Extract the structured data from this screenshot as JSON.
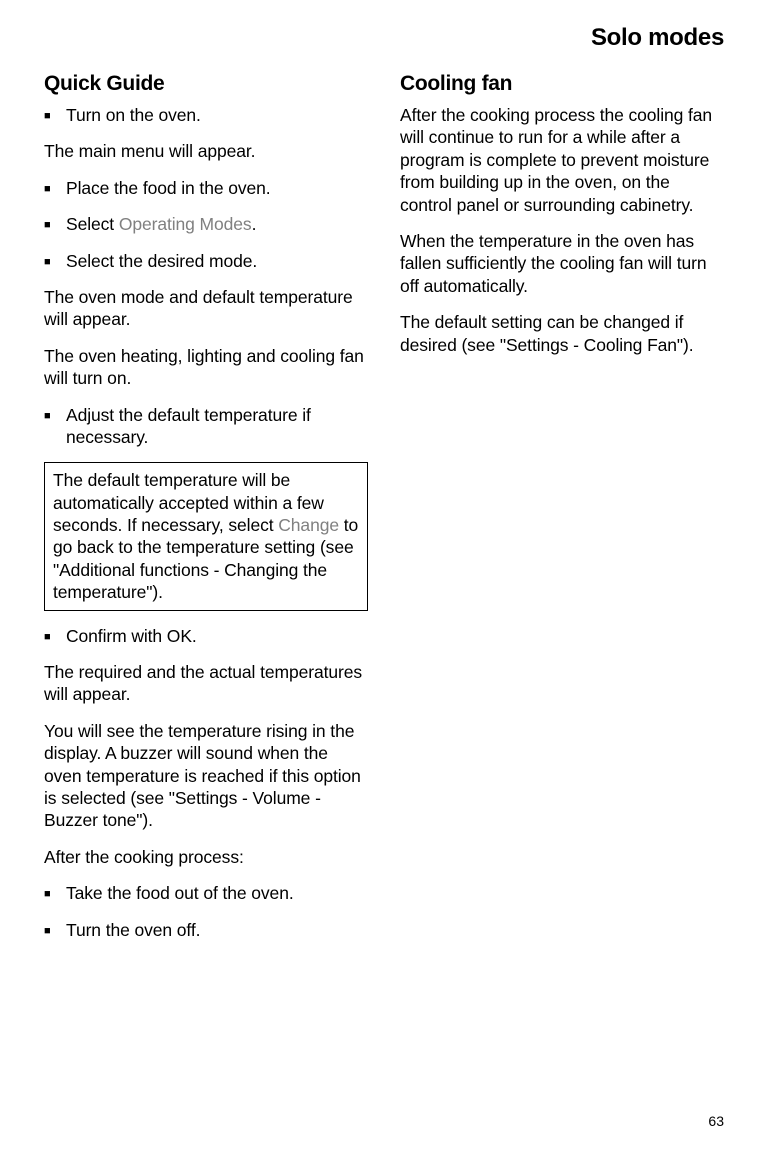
{
  "header": {
    "title": "Solo modes"
  },
  "left": {
    "heading": "Quick Guide",
    "items": [
      {
        "type": "bullet",
        "text": "Turn on the oven."
      },
      {
        "type": "para",
        "text": "The main menu will appear."
      },
      {
        "type": "bullet",
        "text": "Place the food in the oven."
      },
      {
        "type": "bullet_select",
        "prefix": "Select ",
        "label": "Operating Modes",
        "suffix": "."
      },
      {
        "type": "bullet",
        "text": "Select the desired mode."
      },
      {
        "type": "para",
        "text": "The oven mode and default temperature will appear."
      },
      {
        "type": "para",
        "text": "The oven heating, lighting and cooling fan will turn on."
      },
      {
        "type": "bullet",
        "text": "Adjust the default temperature if necessary."
      },
      {
        "type": "note",
        "prefix": "The default temperature will be automatically accepted within a few seconds. If necessary, select ",
        "label": "Change",
        "suffix": " to go back to the temperature setting (see \"Additional functions - Changing the temperature\")."
      },
      {
        "type": "bullet",
        "text": "Confirm with OK."
      },
      {
        "type": "para",
        "text": "The required and the actual temperatures will appear."
      },
      {
        "type": "para",
        "text": "You will see the temperature rising in the display. A buzzer will sound when the oven temperature is reached if this option is selected (see \"Settings - Volume - Buzzer tone\")."
      },
      {
        "type": "para",
        "text": "After the cooking process:"
      },
      {
        "type": "bullet",
        "text": "Take the food out of the oven."
      },
      {
        "type": "bullet",
        "text": "Turn the oven off."
      }
    ]
  },
  "right": {
    "heading": "Cooling fan",
    "paras": [
      "After the cooking process the cooling fan will continue to run for a while after a program is complete to prevent moisture from building up in the oven, on the control panel or surrounding cabinetry.",
      "When the temperature in the oven has fallen sufficiently the cooling fan will turn off automatically.",
      "The default setting can be changed if desired (see \"Settings - Cooling Fan\")."
    ]
  },
  "page_number": "63",
  "bullet_glyph": "■",
  "colors": {
    "text": "#000000",
    "ui_label": "#808080",
    "background": "#ffffff",
    "border": "#000000"
  }
}
